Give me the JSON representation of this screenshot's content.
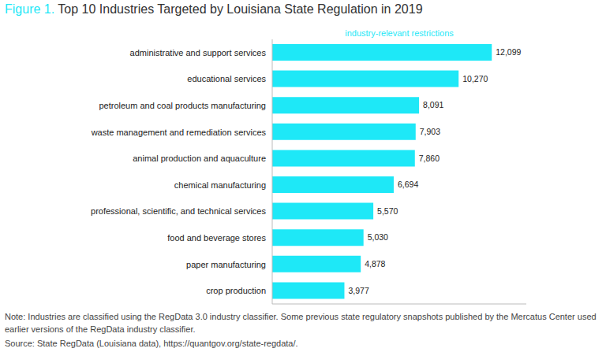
{
  "chart_data": {
    "type": "bar",
    "title": "Figure 1. Top 10 Industries Targeted by Louisiana State Regulation in 2019",
    "orientation": "horizontal",
    "categories": [
      "administrative and support services",
      "educational services",
      "petroleum and coal products manufacturing",
      "waste management and remediation services",
      "animal production and aquaculture",
      "chemical manufacturing",
      "professional, scientific, and technical services",
      "food and beverage stores",
      "paper manufacturing",
      "crop production"
    ],
    "series": [
      {
        "name": "industry-relevant restrictions",
        "color": "#1ee8f7",
        "values": [
          12099,
          10270,
          8091,
          7903,
          7860,
          6694,
          5570,
          5030,
          4878,
          3977
        ],
        "value_labels": [
          "12,099",
          "10,270",
          "8,091",
          "7,903",
          "7,860",
          "6,694",
          "5,570",
          "5,030",
          "4,878",
          "3,977"
        ]
      }
    ],
    "xlim": [
      0,
      14000
    ],
    "data_labels": true,
    "tick_labels": "y",
    "grid": false,
    "legend": "top",
    "note": "Note: Industries are classified using the RegData 3.0 industry classifier. Some previous state regulatory snapshots published by the Mercatus Center used earlier versions of the RegData industry classifier.",
    "source": "Source: State RegData (Louisiana data), https://quantgov.org/state-regdata/."
  }
}
